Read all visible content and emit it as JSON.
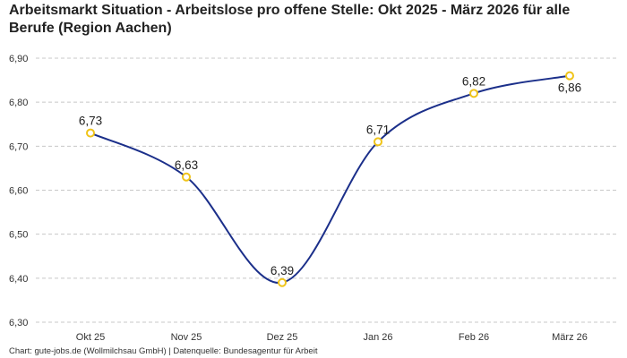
{
  "chart_data": {
    "type": "line",
    "title": "Arbeitsmarkt Situation - Arbeitslose pro offene Stelle: Okt 2025 - März 2026 für alle Berufe (Region Aachen)",
    "categories": [
      "Okt 25",
      "Nov 25",
      "Dez 25",
      "Jan 26",
      "Feb 26",
      "März 26"
    ],
    "values": [
      6.73,
      6.63,
      6.39,
      6.71,
      6.82,
      6.86
    ],
    "data_labels": [
      "6,73",
      "6,63",
      "6,39",
      "6,71",
      "6,82",
      "6,86"
    ],
    "yticks": [
      6.3,
      6.4,
      6.5,
      6.6,
      6.7,
      6.8,
      6.9
    ],
    "ytick_labels": [
      "6,30",
      "6,40",
      "6,50",
      "6,60",
      "6,70",
      "6,80",
      "6,90"
    ],
    "ylim": [
      6.3,
      6.9
    ],
    "grid": true,
    "line_color": "#1b2f8a",
    "marker_color": "#f0c419"
  },
  "footer": "Chart: gute-jobs.de (Wollmilchsau GmbH) | Datenquelle: Bundesagentur für Arbeit"
}
